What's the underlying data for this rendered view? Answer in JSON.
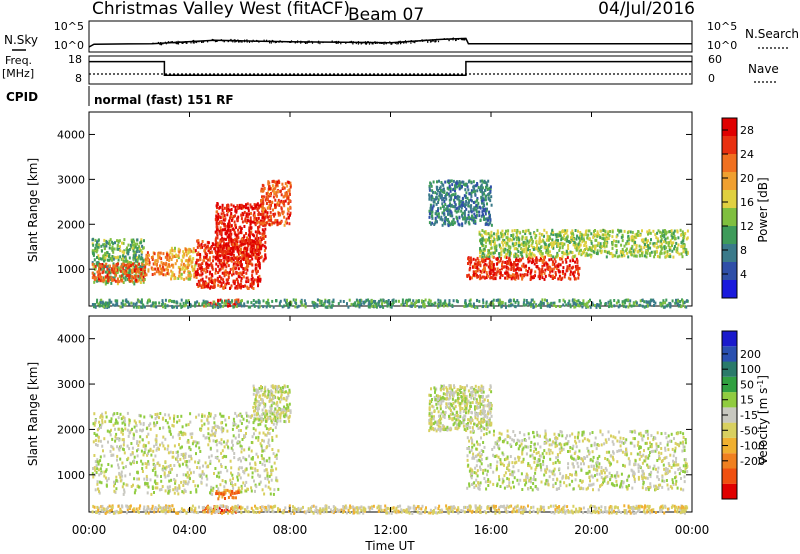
{
  "header": {
    "station": "Christmas Valley West (fitACF)",
    "beam": "Beam 07",
    "date": "04/Jul/2016"
  },
  "noise": {
    "left_label": "N.Sky",
    "right_label": "N.Search",
    "left_ticks": [
      "10^5",
      "10^0"
    ],
    "right_ticks": [
      "10^5",
      "10^0"
    ]
  },
  "freq": {
    "left_label_1": "Freq.",
    "left_label_2": "[MHz]",
    "left_ticks": [
      "18",
      "8"
    ],
    "right_label": "Nave",
    "right_ticks": [
      "60",
      "0"
    ]
  },
  "cpid": {
    "label": "CPID",
    "text": "normal (fast) 151 RF"
  },
  "axes": {
    "ylabel": "Slant Range [km]",
    "xlabel": "Time UT",
    "y_ticks": [
      "1000",
      "2000",
      "3000",
      "4000"
    ],
    "x_ticks": [
      "00:00",
      "04:00",
      "08:00",
      "12:00",
      "16:00",
      "20:00",
      "00:00"
    ]
  },
  "power_bar": {
    "label": "Power [dB]",
    "ticks": [
      "4",
      "8",
      "12",
      "16",
      "20",
      "24",
      "28"
    ],
    "colors": [
      "#1a1adc",
      "#2f4fa8",
      "#3a7a8a",
      "#3e9b5a",
      "#7fbf3f",
      "#e0d040",
      "#f0a030",
      "#f07020",
      "#e83010",
      "#e00000"
    ]
  },
  "velocity_bar": {
    "label": "Velocity [m s^-1]",
    "ticks": [
      "200",
      "100",
      "50",
      "15",
      "-15",
      "-50",
      "-100",
      "-200"
    ],
    "colors": [
      "#1a1acc",
      "#2a50b0",
      "#2a7a6a",
      "#30a040",
      "#90cc40",
      "#c8c8c0",
      "#d8d060",
      "#f0b030",
      "#f08020",
      "#f05010",
      "#e00000"
    ]
  },
  "chart_data": {
    "type": "heatmap",
    "x_unit": "hours UT",
    "xlim": [
      0,
      24
    ],
    "ylim": [
      180,
      4500
    ],
    "panels": [
      {
        "name": "Power [dB]",
        "clim": [
          0,
          30
        ],
        "regions": [
          {
            "t": [
              0.1,
              2.2
            ],
            "range": [
              700,
              1700
            ],
            "value": 12
          },
          {
            "t": [
              0.1,
              2.2
            ],
            "range": [
              750,
              1150
            ],
            "value": 24
          },
          {
            "t": [
              2.2,
              3.2
            ],
            "range": [
              900,
              1400
            ],
            "value": 22
          },
          {
            "t": [
              3.2,
              4.2
            ],
            "range": [
              800,
              1500
            ],
            "value": 18
          },
          {
            "t": [
              4.2,
              6.8
            ],
            "range": [
              600,
              1700
            ],
            "value": 26
          },
          {
            "t": [
              5.0,
              7.0
            ],
            "range": [
              1200,
              2500
            ],
            "value": 27
          },
          {
            "t": [
              6.8,
              8.0
            ],
            "range": [
              2000,
              3000
            ],
            "value": 24
          },
          {
            "t": [
              4.5,
              6.0
            ],
            "range": [
              200,
              350
            ],
            "value": 26
          },
          {
            "t": [
              15.0,
              19.5
            ],
            "range": [
              800,
              1300
            ],
            "value": 26
          },
          {
            "t": [
              15.5,
              23.8
            ],
            "range": [
              1300,
              1900
            ],
            "value": 14
          },
          {
            "t": [
              13.5,
              16.0
            ],
            "range": [
              2000,
              3000
            ],
            "value": 8
          },
          {
            "t": [
              0.1,
              23.8
            ],
            "range": [
              180,
              350
            ],
            "value": 10
          }
        ]
      },
      {
        "name": "Velocity [m s^-1]",
        "clim": [
          -250,
          250
        ],
        "regions": [
          {
            "t": [
              0.1,
              7.5
            ],
            "range": [
              600,
              2400
            ],
            "value": 0
          },
          {
            "t": [
              6.5,
              8.0
            ],
            "range": [
              2200,
              3000
            ],
            "value": 0
          },
          {
            "t": [
              15.0,
              23.8
            ],
            "range": [
              700,
              2000
            ],
            "value": 0
          },
          {
            "t": [
              13.5,
              16.0
            ],
            "range": [
              2000,
              3000
            ],
            "value": 0
          },
          {
            "t": [
              4.5,
              6.0
            ],
            "range": [
              200,
              350
            ],
            "value": -200
          },
          {
            "t": [
              5.0,
              6.0
            ],
            "range": [
              500,
              700
            ],
            "value": -150
          },
          {
            "t": [
              0.1,
              23.8
            ],
            "range": [
              180,
              350
            ],
            "value": -40
          }
        ]
      }
    ],
    "noise_sky_log10": [
      {
        "t": 0.0,
        "v": 0.2
      },
      {
        "t": 0.2,
        "v": 0.8
      },
      {
        "t": 2.5,
        "v": 0.9
      },
      {
        "t": 5.0,
        "v": 1.6
      },
      {
        "t": 8.0,
        "v": 1.3
      },
      {
        "t": 12.0,
        "v": 1.1
      },
      {
        "t": 14.0,
        "v": 1.8
      },
      {
        "t": 15.0,
        "v": 2.0
      },
      {
        "t": 15.1,
        "v": 0.9
      },
      {
        "t": 24.0,
        "v": 0.9
      }
    ],
    "frequency_mhz": [
      {
        "t": 0.0,
        "v": 16.5
      },
      {
        "t": 3.0,
        "v": 16.5
      },
      {
        "t": 3.0,
        "v": 10.8
      },
      {
        "t": 15.0,
        "v": 10.8
      },
      {
        "t": 15.0,
        "v": 16.5
      },
      {
        "t": 24.0,
        "v": 16.5
      }
    ],
    "nave": {
      "value": 20,
      "t": [
        0,
        24
      ]
    }
  }
}
